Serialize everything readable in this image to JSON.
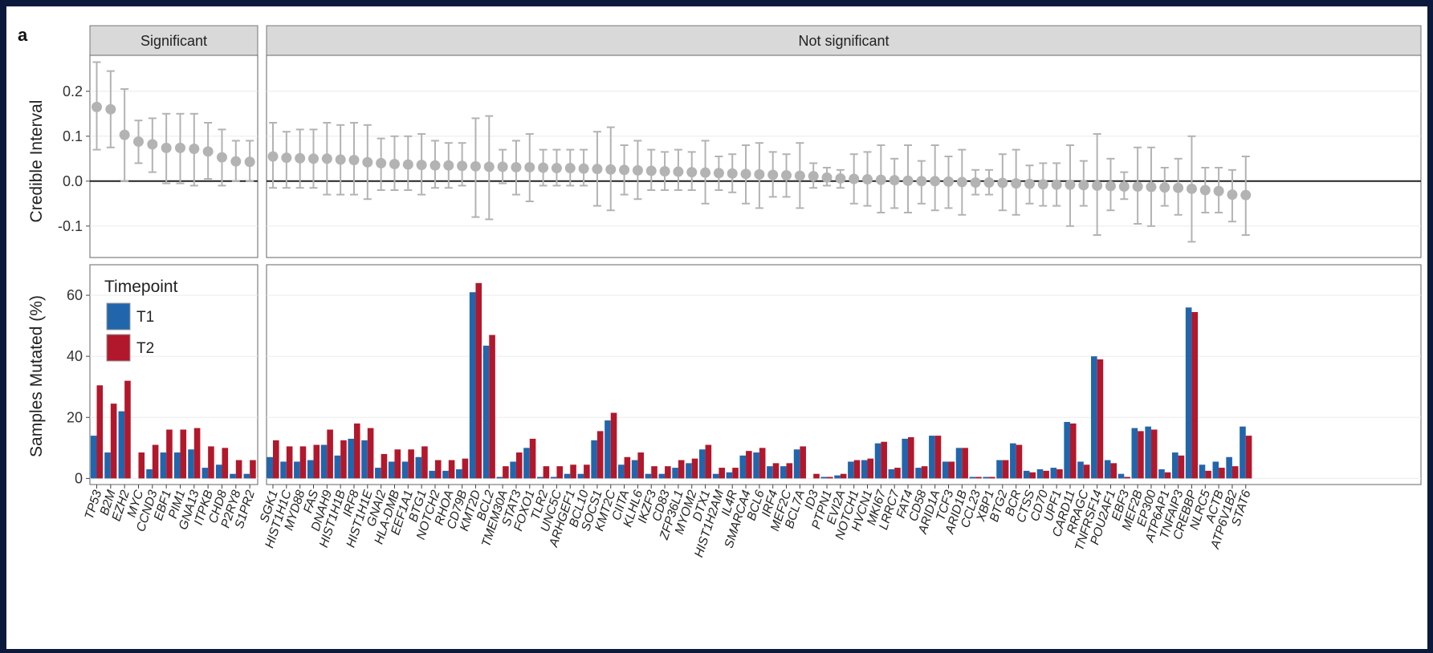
{
  "panel_label": "a",
  "facets": [
    "Significant",
    "Not significant"
  ],
  "legend": {
    "title": "Timepoint",
    "items": [
      {
        "label": "T1",
        "color": "#2166ac"
      },
      {
        "label": "T2",
        "color": "#b2182b"
      }
    ]
  },
  "colors": {
    "point": "#b3b3b3",
    "t1": "#2166ac",
    "t2": "#b2182b",
    "strip": "#d9d9d9"
  },
  "chart_data": [
    {
      "type": "scatter",
      "name": "credible-interval",
      "ylabel": "Credible Interval",
      "ylim": [
        -0.17,
        0.28
      ],
      "yticks": [
        -0.1,
        0.0,
        0.1,
        0.2
      ],
      "ytick_labels": [
        "-0.1",
        "0.0",
        "0.1",
        "0.2"
      ],
      "grid": true,
      "reference_line": 0,
      "x": [
        "TP53",
        "B2M",
        "EZH2",
        "MYC",
        "CCND3",
        "EBF1",
        "PIM1",
        "GNA13",
        "ITPKB",
        "CHD8",
        "P2RY8",
        "S1PR2",
        "SGK1",
        "HIST1H1C",
        "MYD88",
        "FAS",
        "DNAH9",
        "HIST1H1B",
        "IRF8",
        "HIST1H1E",
        "GNAI2",
        "HLA-DMB",
        "EEF1A1",
        "BTG1",
        "NOTCH2",
        "RHOA",
        "CD79B",
        "KMT2D",
        "BCL2",
        "TMEM30A",
        "STAT3",
        "FOXO1",
        "TLR2",
        "UNC5C",
        "ARHGEF1",
        "BCL10",
        "SOCS1",
        "KMT2C",
        "CIITA",
        "KLHL6",
        "IKZF3",
        "CD83",
        "ZFP36L1",
        "MYOM2",
        "DTX1",
        "HIST1H2AM",
        "IL4R",
        "SMARCA4",
        "BCL6",
        "IRF4",
        "MEF2C",
        "BCL7A",
        "ID3",
        "PTPN1",
        "EVI2A",
        "NOTCH1",
        "HVCN1",
        "MKI67",
        "LRRC7",
        "FAT4",
        "CD58",
        "ARID1A",
        "TCF3",
        "ARID1B",
        "CCL23",
        "XBP1",
        "BTG2",
        "BCR",
        "CTSS",
        "CD70",
        "UPF1",
        "CARD11",
        "RRAGC",
        "TNFRSF14",
        "POU2AF1",
        "EBF3",
        "MEF2B",
        "EP300",
        "ATP6AP1",
        "TNFAIP3",
        "CREBBP",
        "NLRC5",
        "ACTB",
        "ATP6V1B2",
        "STAT6"
      ],
      "y": [
        0.165,
        0.16,
        0.103,
        0.088,
        0.082,
        0.074,
        0.074,
        0.072,
        0.066,
        0.053,
        0.044,
        0.043,
        0.055,
        0.052,
        0.051,
        0.05,
        0.05,
        0.048,
        0.047,
        0.042,
        0.04,
        0.038,
        0.037,
        0.036,
        0.035,
        0.035,
        0.034,
        0.033,
        0.032,
        0.032,
        0.031,
        0.031,
        0.03,
        0.029,
        0.029,
        0.028,
        0.027,
        0.026,
        0.025,
        0.024,
        0.023,
        0.022,
        0.021,
        0.02,
        0.019,
        0.018,
        0.017,
        0.016,
        0.015,
        0.014,
        0.013,
        0.012,
        0.011,
        0.008,
        0.006,
        0.005,
        0.004,
        0.003,
        0.002,
        0.001,
        0.0,
        0.0,
        -0.001,
        -0.002,
        -0.003,
        -0.003,
        -0.004,
        -0.005,
        -0.006,
        -0.007,
        -0.008,
        -0.008,
        -0.009,
        -0.01,
        -0.011,
        -0.012,
        -0.012,
        -0.013,
        -0.014,
        -0.015,
        -0.017,
        -0.02,
        -0.022,
        -0.03,
        -0.031
      ],
      "lower": [
        0.07,
        0.075,
        0.0,
        0.04,
        0.02,
        -0.005,
        -0.005,
        -0.01,
        0.005,
        -0.01,
        0.0,
        0.0,
        -0.015,
        -0.015,
        -0.015,
        -0.015,
        -0.03,
        -0.03,
        -0.03,
        -0.04,
        -0.02,
        -0.02,
        -0.02,
        -0.03,
        -0.015,
        -0.015,
        -0.01,
        -0.08,
        -0.085,
        -0.005,
        -0.03,
        -0.045,
        -0.01,
        -0.01,
        -0.01,
        -0.01,
        -0.055,
        -0.065,
        -0.03,
        -0.04,
        -0.02,
        -0.02,
        -0.02,
        -0.02,
        -0.05,
        -0.02,
        -0.025,
        -0.05,
        -0.06,
        -0.035,
        -0.035,
        -0.06,
        -0.015,
        -0.01,
        -0.015,
        -0.05,
        -0.055,
        -0.07,
        -0.06,
        -0.07,
        -0.05,
        -0.065,
        -0.06,
        -0.075,
        -0.03,
        -0.03,
        -0.065,
        -0.075,
        -0.05,
        -0.055,
        -0.055,
        -0.1,
        -0.055,
        -0.12,
        -0.065,
        -0.04,
        -0.095,
        -0.1,
        -0.055,
        -0.075,
        -0.135,
        -0.07,
        -0.07,
        -0.09,
        -0.12
      ],
      "upper": [
        0.265,
        0.245,
        0.205,
        0.135,
        0.14,
        0.15,
        0.15,
        0.15,
        0.13,
        0.115,
        0.09,
        0.09,
        0.13,
        0.11,
        0.115,
        0.115,
        0.13,
        0.125,
        0.13,
        0.125,
        0.095,
        0.1,
        0.1,
        0.105,
        0.09,
        0.085,
        0.085,
        0.14,
        0.145,
        0.07,
        0.09,
        0.105,
        0.07,
        0.07,
        0.07,
        0.07,
        0.11,
        0.12,
        0.08,
        0.09,
        0.07,
        0.065,
        0.07,
        0.065,
        0.09,
        0.055,
        0.06,
        0.08,
        0.085,
        0.065,
        0.06,
        0.085,
        0.04,
        0.03,
        0.025,
        0.06,
        0.065,
        0.08,
        0.05,
        0.08,
        0.045,
        0.08,
        0.055,
        0.07,
        0.025,
        0.025,
        0.06,
        0.07,
        0.035,
        0.04,
        0.04,
        0.08,
        0.045,
        0.105,
        0.05,
        0.02,
        0.075,
        0.075,
        0.03,
        0.05,
        0.1,
        0.03,
        0.03,
        0.025,
        0.055
      ]
    },
    {
      "type": "bar",
      "name": "samples-mutated",
      "ylabel": "Samples Mutated (%)",
      "ylim": [
        -2,
        70
      ],
      "yticks": [
        0,
        20,
        40,
        60
      ],
      "ytick_labels": [
        "0",
        "20",
        "40",
        "60"
      ],
      "grid": true,
      "legend_position": "top-left",
      "categories": [
        "TP53",
        "B2M",
        "EZH2",
        "MYC",
        "CCND3",
        "EBF1",
        "PIM1",
        "GNA13",
        "ITPKB",
        "CHD8",
        "P2RY8",
        "S1PR2",
        "SGK1",
        "HIST1H1C",
        "MYD88",
        "FAS",
        "DNAH9",
        "HIST1H1B",
        "IRF8",
        "HIST1H1E",
        "GNAI2",
        "HLA-DMB",
        "EEF1A1",
        "BTG1",
        "NOTCH2",
        "RHOA",
        "CD79B",
        "KMT2D",
        "BCL2",
        "TMEM30A",
        "STAT3",
        "FOXO1",
        "TLR2",
        "UNC5C",
        "ARHGEF1",
        "BCL10",
        "SOCS1",
        "KMT2C",
        "CIITA",
        "KLHL6",
        "IKZF3",
        "CD83",
        "ZFP36L1",
        "MYOM2",
        "DTX1",
        "HIST1H2AM",
        "IL4R",
        "SMARCA4",
        "BCL6",
        "IRF4",
        "MEF2C",
        "BCL7A",
        "ID3",
        "PTPN1",
        "EVI2A",
        "NOTCH1",
        "HVCN1",
        "MKI67",
        "LRRC7",
        "FAT4",
        "CD58",
        "ARID1A",
        "TCF3",
        "ARID1B",
        "CCL23",
        "XBP1",
        "BTG2",
        "BCR",
        "CTSS",
        "CD70",
        "UPF1",
        "CARD11",
        "RRAGC",
        "TNFRSF14",
        "POU2AF1",
        "EBF3",
        "MEF2B",
        "EP300",
        "ATP6AP1",
        "TNFAIP3",
        "CREBBP",
        "NLRC5",
        "ACTB",
        "ATP6V1B2",
        "STAT6"
      ],
      "series": [
        {
          "name": "T1",
          "values": [
            14,
            8.5,
            22,
            0,
            3,
            8.5,
            8.5,
            9.5,
            3.5,
            4.5,
            1.5,
            1.5,
            7,
            5.5,
            5.5,
            6,
            11,
            7.5,
            13,
            12.5,
            3.5,
            5.5,
            5.5,
            7,
            2.5,
            2.5,
            3,
            61,
            43.5,
            0.5,
            5.5,
            10,
            0.5,
            0.5,
            1.5,
            1.5,
            12.5,
            19,
            4.5,
            6,
            1.5,
            1.5,
            3.5,
            5,
            9.5,
            1.5,
            2,
            7.5,
            8.5,
            4,
            4,
            9.5,
            0,
            0.5,
            1,
            5.5,
            6,
            11.5,
            3,
            13,
            3.5,
            14,
            5.5,
            10,
            0.5,
            0.5,
            6,
            11.5,
            2.5,
            3,
            3.5,
            18.5,
            5.5,
            40,
            6,
            1.5,
            16.5,
            17,
            3,
            8.5,
            56,
            4.5,
            5.5,
            7,
            17
          ]
        },
        {
          "name": "T2",
          "values": [
            30.5,
            24.5,
            32,
            8.5,
            11,
            16,
            16,
            16.5,
            10.5,
            10,
            6,
            6,
            12.5,
            10.5,
            10.5,
            11,
            16,
            12.5,
            18,
            16.5,
            8,
            9.5,
            9.5,
            10.5,
            6,
            6,
            6.5,
            64,
            47,
            4,
            8.5,
            13,
            4,
            4,
            4.5,
            4.5,
            15.5,
            21.5,
            7,
            8.5,
            4,
            4,
            6,
            6.5,
            11,
            3.5,
            3.5,
            9,
            10,
            5,
            5,
            10.5,
            1.5,
            0.5,
            1.5,
            6,
            6.5,
            12,
            3.5,
            13.5,
            4,
            14,
            5.5,
            10,
            0.5,
            0.5,
            6,
            11,
            2,
            2.5,
            3,
            18,
            4.5,
            39,
            5,
            0.5,
            15.5,
            16,
            2,
            7.5,
            54.5,
            2.5,
            3.5,
            4,
            14
          ]
        }
      ]
    }
  ]
}
